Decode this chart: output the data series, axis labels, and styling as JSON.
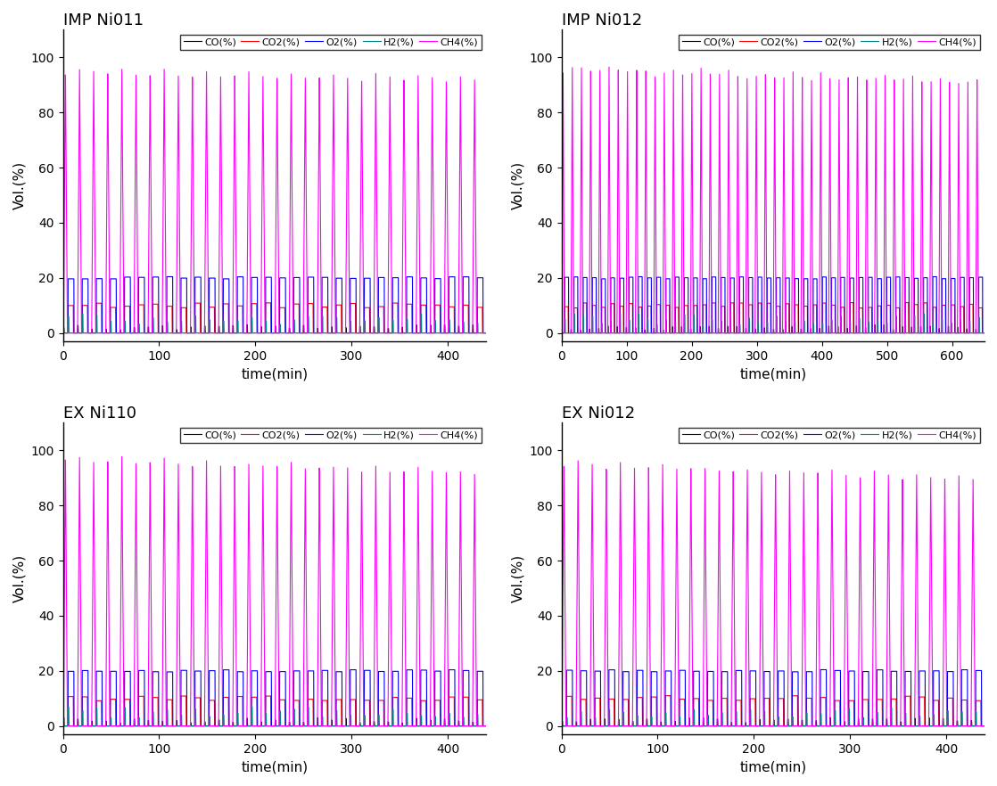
{
  "subplots": [
    {
      "title": "IMP Ni011",
      "xmax": 440,
      "xticks": [
        0,
        100,
        200,
        300,
        400
      ],
      "n_cycles": 30,
      "ch4_peak_start": 96,
      "ch4_peak_end": 93,
      "o2_level": 20,
      "co2_level": 10,
      "seed": 11
    },
    {
      "title": "IMP Ni012",
      "xmax": 650,
      "xticks": [
        0,
        100,
        200,
        300,
        400,
        500,
        600
      ],
      "n_cycles": 46,
      "ch4_peak_start": 97,
      "ch4_peak_end": 92,
      "o2_level": 20,
      "co2_level": 10,
      "seed": 12
    },
    {
      "title": "EX Ni110",
      "xmax": 440,
      "xticks": [
        0,
        100,
        200,
        300,
        400
      ],
      "n_cycles": 30,
      "ch4_peak_start": 98,
      "ch4_peak_end": 93,
      "o2_level": 20,
      "co2_level": 10,
      "seed": 13
    },
    {
      "title": "EX Ni012",
      "xmax": 440,
      "xticks": [
        0,
        100,
        200,
        300,
        400
      ],
      "n_cycles": 30,
      "ch4_peak_start": 96,
      "ch4_peak_end": 91,
      "o2_level": 20,
      "co2_level": 10,
      "seed": 14
    }
  ],
  "colors": {
    "CO": "#000000",
    "CO2": "#ff0000",
    "O2": "#0000ff",
    "H2": "#008080",
    "CH4": "#ff00ff"
  },
  "legend_labels": [
    "CO(%)",
    "CO2(%)",
    "O2(%)",
    "H2(%)",
    "CH4(%)"
  ],
  "ylabel": "Vol.(%)",
  "xlabel": "time(min)",
  "ylim": [
    -3,
    110
  ],
  "yticks": [
    0,
    20,
    40,
    60,
    80,
    100
  ],
  "linewidth": 0.8,
  "bg": "#ffffff",
  "title_fontsize": 13,
  "label_fontsize": 11,
  "tick_fontsize": 10,
  "legend_fontsize": 8
}
